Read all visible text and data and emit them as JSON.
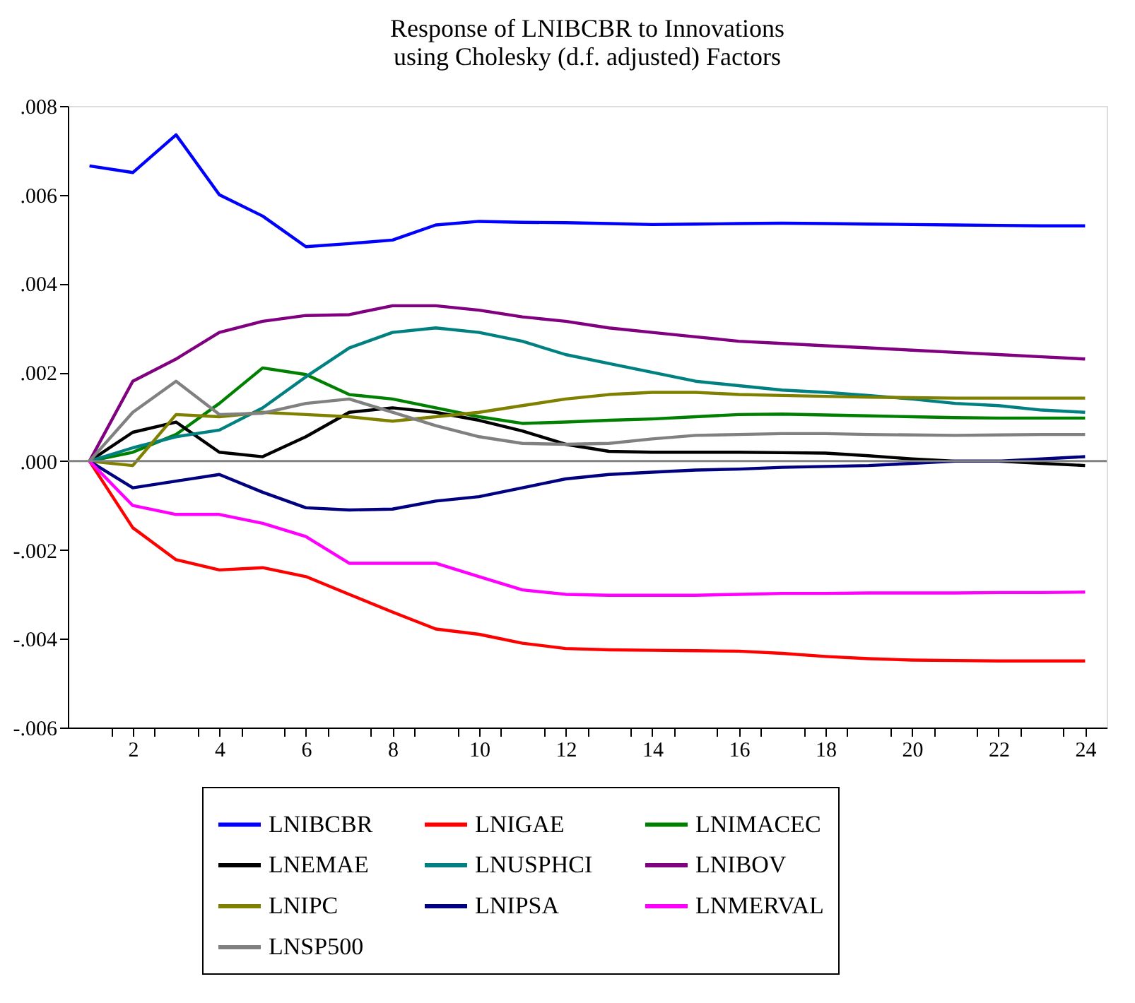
{
  "chart_data": {
    "type": "line",
    "title": [
      "Response of LNIBCBR to Innovations",
      "using Cholesky (d.f. adjusted) Factors"
    ],
    "x": [
      1,
      2,
      3,
      4,
      5,
      6,
      7,
      8,
      9,
      10,
      11,
      12,
      13,
      14,
      15,
      16,
      17,
      18,
      19,
      20,
      21,
      22,
      23,
      24
    ],
    "xlim": [
      0.5,
      24.5
    ],
    "xticks": [
      {
        "value": 1.5,
        "label": null
      },
      2,
      {
        "value": 2.5,
        "label": null
      },
      {
        "value": 3.5,
        "label": null
      },
      4,
      {
        "value": 4.5,
        "label": null
      },
      {
        "value": 5.5,
        "label": null
      },
      6,
      {
        "value": 6.5,
        "label": null
      },
      {
        "value": 7.5,
        "label": null
      },
      8,
      {
        "value": 8.5,
        "label": null
      },
      {
        "value": 9.5,
        "label": null
      },
      10,
      {
        "value": 10.5,
        "label": null
      },
      {
        "value": 11.5,
        "label": null
      },
      12,
      {
        "value": 12.5,
        "label": null
      },
      {
        "value": 13.5,
        "label": null
      },
      14,
      {
        "value": 14.5,
        "label": null
      },
      {
        "value": 15.5,
        "label": null
      },
      16,
      {
        "value": 16.5,
        "label": null
      },
      {
        "value": 17.5,
        "label": null
      },
      18,
      {
        "value": 18.5,
        "label": null
      },
      {
        "value": 19.5,
        "label": null
      },
      20,
      {
        "value": 20.5,
        "label": null
      },
      {
        "value": 21.5,
        "label": null
      },
      22,
      {
        "value": 22.5,
        "label": null
      },
      {
        "value": 23.5,
        "label": null
      },
      24
    ],
    "ylim": [
      -0.006,
      0.008
    ],
    "yticks": [
      {
        "value": -0.006,
        "label": "-.006"
      },
      {
        "value": -0.004,
        "label": "-.004"
      },
      {
        "value": -0.002,
        "label": "-.002"
      },
      {
        "value": 0,
        "label": ".000"
      },
      {
        "value": 0.002,
        "label": ".002"
      },
      {
        "value": 0.004,
        "label": ".004"
      },
      {
        "value": 0.006,
        "label": ".006"
      },
      {
        "value": 0.008,
        "label": ".008"
      }
    ],
    "grid": false,
    "legend": "bottom",
    "line_style": "solid",
    "ref_lines": [
      {
        "axis": "y",
        "value": 0,
        "color": "#808080"
      }
    ],
    "series": [
      {
        "name": "LNIBCBR",
        "color": "#0000ff",
        "values": [
          0.00665,
          0.0065,
          0.00735,
          0.006,
          0.00552,
          0.00483,
          0.0049,
          0.00498,
          0.00532,
          0.0054,
          0.00538,
          0.00537,
          0.00535,
          0.00533,
          0.00534,
          0.00535,
          0.00536,
          0.00535,
          0.00534,
          0.00533,
          0.00532,
          0.00531,
          0.0053,
          0.0053
        ]
      },
      {
        "name": "LNIGAE",
        "color": "#ff0000",
        "values": [
          0,
          -0.0015,
          -0.00222,
          -0.00245,
          -0.0024,
          -0.0026,
          -0.003,
          -0.0034,
          -0.00378,
          -0.0039,
          -0.0041,
          -0.00422,
          -0.00425,
          -0.00426,
          -0.00427,
          -0.00428,
          -0.00433,
          -0.0044,
          -0.00445,
          -0.00448,
          -0.00449,
          -0.0045,
          -0.0045,
          -0.0045
        ]
      },
      {
        "name": "LNIMACEC",
        "color": "#008000",
        "values": [
          0,
          0.0002,
          0.0006,
          0.0013,
          0.0021,
          0.00195,
          0.0015,
          0.0014,
          0.0012,
          0.001,
          0.00085,
          0.00088,
          0.00092,
          0.00095,
          0.001,
          0.00105,
          0.00106,
          0.00104,
          0.00102,
          0.001,
          0.00098,
          0.00097,
          0.00097,
          0.00097
        ]
      },
      {
        "name": "LNEMAE",
        "color": "#000000",
        "values": [
          0,
          0.00065,
          0.00088,
          0.0002,
          0.0001,
          0.00055,
          0.0011,
          0.0012,
          0.0011,
          0.00092,
          0.00068,
          0.00038,
          0.00022,
          0.0002,
          0.0002,
          0.0002,
          0.00019,
          0.00018,
          0.00012,
          5e-05,
          0,
          0,
          -5e-05,
          -0.0001
        ]
      },
      {
        "name": "LNUSPHCI",
        "color": "#008080",
        "values": [
          0,
          0.0003,
          0.00055,
          0.0007,
          0.0012,
          0.0019,
          0.00255,
          0.0029,
          0.003,
          0.0029,
          0.0027,
          0.0024,
          0.0022,
          0.002,
          0.0018,
          0.0017,
          0.0016,
          0.00155,
          0.00148,
          0.0014,
          0.0013,
          0.00125,
          0.00115,
          0.0011
        ]
      },
      {
        "name": "LNIBOV",
        "color": "#800080",
        "values": [
          0,
          0.0018,
          0.0023,
          0.0029,
          0.00315,
          0.00328,
          0.0033,
          0.0035,
          0.0035,
          0.0034,
          0.00325,
          0.00315,
          0.003,
          0.0029,
          0.0028,
          0.0027,
          0.00265,
          0.0026,
          0.00255,
          0.0025,
          0.00245,
          0.0024,
          0.00235,
          0.0023
        ]
      },
      {
        "name": "LNIPC",
        "color": "#808000",
        "values": [
          0,
          -0.0001,
          0.00105,
          0.001,
          0.0011,
          0.00105,
          0.001,
          0.0009,
          0.001,
          0.0011,
          0.00125,
          0.0014,
          0.0015,
          0.00155,
          0.00155,
          0.0015,
          0.00148,
          0.00146,
          0.00144,
          0.00143,
          0.00142,
          0.00142,
          0.00142,
          0.00142
        ]
      },
      {
        "name": "LNIPSA",
        "color": "#000080",
        "values": [
          0,
          -0.0006,
          -0.00045,
          -0.0003,
          -0.0007,
          -0.00105,
          -0.0011,
          -0.00108,
          -0.0009,
          -0.0008,
          -0.0006,
          -0.0004,
          -0.0003,
          -0.00025,
          -0.0002,
          -0.00018,
          -0.00014,
          -0.00012,
          -0.0001,
          -5e-05,
          0,
          0,
          5e-05,
          0.0001
        ]
      },
      {
        "name": "LNMERVAL",
        "color": "#ff00ff",
        "values": [
          0,
          -0.001,
          -0.0012,
          -0.0012,
          -0.0014,
          -0.0017,
          -0.0023,
          -0.0023,
          -0.0023,
          -0.0026,
          -0.0029,
          -0.003,
          -0.00302,
          -0.00302,
          -0.00302,
          -0.003,
          -0.00298,
          -0.00298,
          -0.00297,
          -0.00297,
          -0.00297,
          -0.00296,
          -0.00296,
          -0.00295
        ]
      },
      {
        "name": "LNSP500",
        "color": "#808080",
        "values": [
          0,
          0.0011,
          0.0018,
          0.00105,
          0.00108,
          0.0013,
          0.0014,
          0.0011,
          0.0008,
          0.00055,
          0.0004,
          0.00038,
          0.0004,
          0.0005,
          0.00058,
          0.0006,
          0.00062,
          0.00062,
          0.0006,
          0.00059,
          0.00058,
          0.00059,
          0.0006,
          0.0006
        ]
      }
    ]
  }
}
